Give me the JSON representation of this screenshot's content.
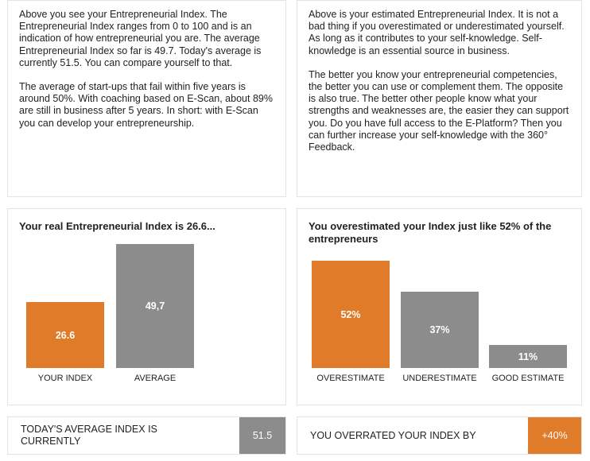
{
  "intro_left": {
    "paragraph_1": "Above you see your Entrepreneurial Index. The Entrepreneurial Index ranges from 0 to 100 and is an indication of how entrepreneurial you are. The average Entrepreneurial Index so far is 49.7. Today's average is currently 51.5. You can compare yourself to that.",
    "paragraph_2": "The average of start-ups that fail within five years is around 50%. With coaching based on E-Scan, about 89% are still in business after 5 years. In short: with E-Scan you can develop your entrepreneurship."
  },
  "intro_right": {
    "paragraph_1": "Above is your estimated Entrepreneurial Index. It is not a bad thing if you overestimated or underestimated yourself. As long as it contributes to your self-knowledge. Self-knowledge is an essential source in business.",
    "paragraph_2": "The better you know your entrepreneurial competencies, the better you can use or complement them. The opposite is also true. The better other people know what your strengths and weaknesses are, the easier they can support you. Do you have full access to the E-Platform? Then you can further increase your self-knowledge with the 360° Feedback."
  },
  "chart_data": [
    {
      "type": "bar",
      "title": "Your real Entrepreneurial Index is 26.6...",
      "categories": [
        "YOUR INDEX",
        "AVERAGE"
      ],
      "values": [
        26.6,
        49.7
      ],
      "value_labels": [
        "26.6",
        "49,7"
      ],
      "colors": [
        "#e07b2a",
        "#8c8c8c"
      ],
      "ylim": [
        0,
        49.7
      ]
    },
    {
      "type": "bar",
      "title": "You overestimated your Index just like 52% of the entrepreneurs",
      "categories": [
        "OVERESTIMATE",
        "UNDERESTIMATE",
        "GOOD ESTIMATE"
      ],
      "values": [
        52,
        37,
        11
      ],
      "value_labels": [
        "52%",
        "37%",
        "11%"
      ],
      "colors": [
        "#e07b2a",
        "#8c8c8c",
        "#8c8c8c"
      ],
      "ylim": [
        0,
        52
      ]
    }
  ],
  "today_average": {
    "label": "TODAY'S AVERAGE INDEX IS CURRENTLY",
    "value": "51.5"
  },
  "overrated": {
    "label": "YOU OVERRATED YOUR INDEX BY",
    "value": "+40%"
  }
}
